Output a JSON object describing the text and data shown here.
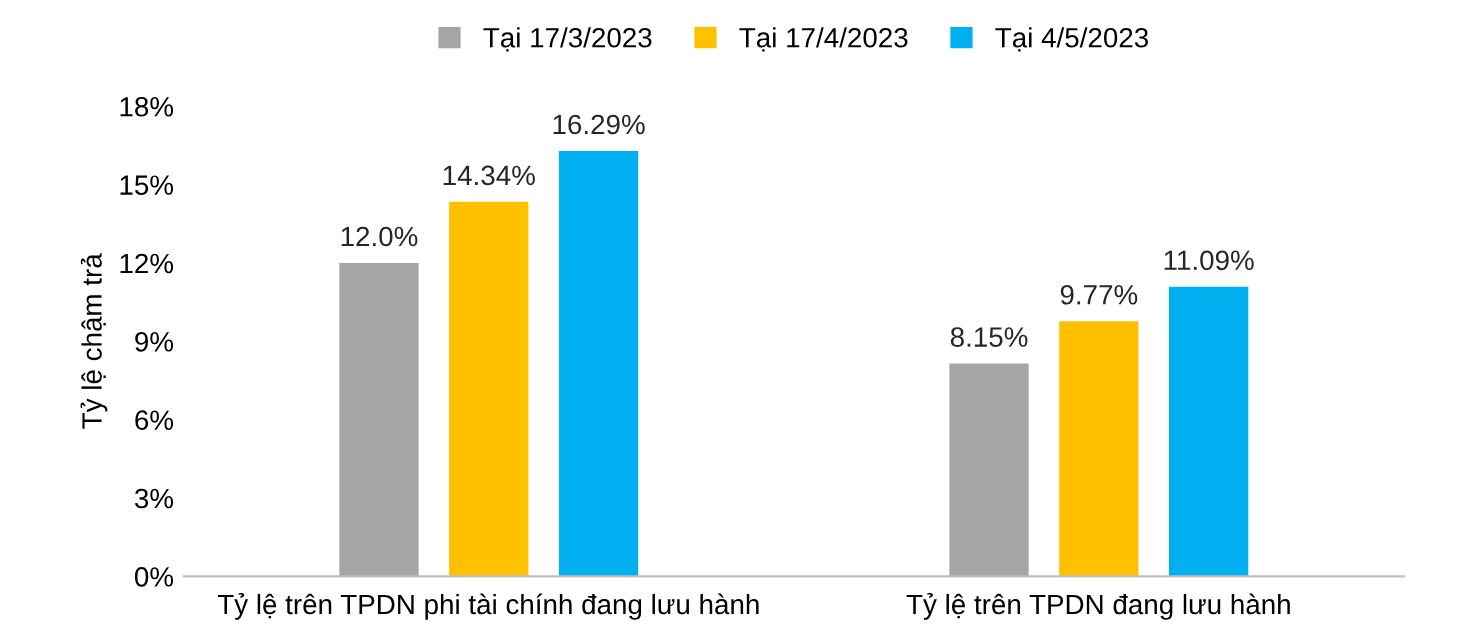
{
  "chart_data": {
    "type": "bar",
    "ylabel": "Tỷ lệ chậm trả",
    "categories": [
      "Tỷ lệ trên TPDN phi tài chính đang lưu hành",
      "Tỷ lệ trên TPDN đang lưu hành"
    ],
    "series": [
      {
        "name": "Tại 17/3/2023",
        "color": "#a5a5a5",
        "values": [
          12.0,
          8.15
        ],
        "value_labels": [
          "12.0%",
          "8.15%"
        ]
      },
      {
        "name": "Tại 17/4/2023",
        "color": "#ffc000",
        "values": [
          14.34,
          9.77
        ],
        "value_labels": [
          "14.34%",
          "9.77%"
        ]
      },
      {
        "name": "Tại 4/5/2023",
        "color": "#00b0f0",
        "values": [
          16.29,
          11.09
        ],
        "value_labels": [
          "16.29%",
          "11.09%"
        ]
      }
    ],
    "ylim": [
      0,
      18
    ],
    "yticks": [
      {
        "value": 0,
        "label": "0%"
      },
      {
        "value": 3,
        "label": "3%"
      },
      {
        "value": 6,
        "label": "6%"
      },
      {
        "value": 9,
        "label": "9%"
      },
      {
        "value": 12,
        "label": "12%"
      },
      {
        "value": 15,
        "label": "15%"
      },
      {
        "value": 18,
        "label": "18%"
      }
    ],
    "grid": false,
    "legend": "top"
  }
}
